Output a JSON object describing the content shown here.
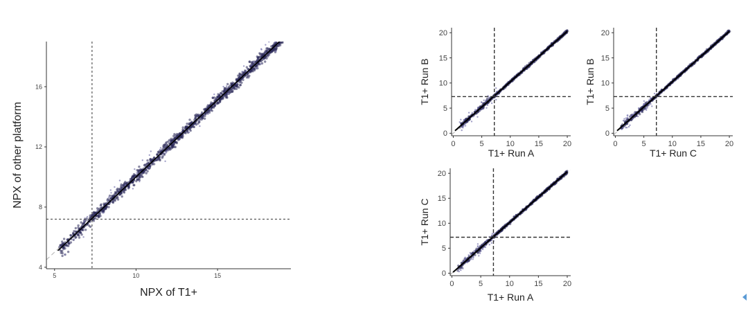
{
  "chart_data": [
    {
      "id": "main",
      "type": "scatter",
      "title": "",
      "xlabel": "NPX of T1+",
      "ylabel": "NPX of other platform",
      "xlim": [
        4.5,
        19.5
      ],
      "ylim": [
        3.9,
        19.0
      ],
      "xticks": [
        5,
        10,
        15
      ],
      "yticks": [
        4,
        8,
        12,
        16
      ],
      "xtick_labels": [
        "5",
        "10",
        "15"
      ],
      "ytick_labels": [
        "4",
        "8",
        "12",
        "16"
      ],
      "vline": 7.3,
      "hline": 7.2,
      "fit_line": [
        [
          5.2,
          5.1
        ],
        [
          19.0,
          19.2
        ]
      ],
      "identity_line": [
        [
          4.5,
          4.5
        ],
        [
          19.5,
          19.5
        ]
      ],
      "point_range": [
        5.3,
        19.0
      ],
      "point_color": "#2c2a5a",
      "grid": false
    },
    {
      "id": "b-vs-a",
      "type": "scatter",
      "title": "",
      "xlabel": "T1+ Run A",
      "ylabel": "T1+ Run B",
      "xlim": [
        -0.3,
        20.6
      ],
      "ylim": [
        -0.5,
        21.0
      ],
      "xticks": [
        0,
        5,
        10,
        15,
        20
      ],
      "yticks": [
        0,
        5,
        10,
        15,
        20
      ],
      "xtick_labels": [
        "0",
        "5",
        "10",
        "15",
        "20"
      ],
      "ytick_labels": [
        "0",
        "5",
        "10",
        "15",
        "20"
      ],
      "vline": 7.2,
      "hline": 7.3,
      "fit_line": [
        [
          0.3,
          0.5
        ],
        [
          20.0,
          20.3
        ]
      ],
      "identity_line": [
        [
          -0.3,
          -0.3
        ],
        [
          20.6,
          20.6
        ]
      ],
      "point_range": [
        1.0,
        20.0
      ],
      "point_color": "#2c2a5a",
      "grid": false
    },
    {
      "id": "b-vs-c",
      "type": "scatter",
      "title": "",
      "xlabel": "T1+ Run C",
      "ylabel": "T1+ Run B",
      "xlim": [
        -0.3,
        20.6
      ],
      "ylim": [
        -0.5,
        21.0
      ],
      "xticks": [
        0,
        5,
        10,
        15,
        20
      ],
      "yticks": [
        0,
        5,
        10,
        15,
        20
      ],
      "xtick_labels": [
        "0",
        "5",
        "10",
        "15",
        "20"
      ],
      "ytick_labels": [
        "0",
        "5",
        "10",
        "15",
        "20"
      ],
      "vline": 7.2,
      "hline": 7.3,
      "fit_line": [
        [
          0.3,
          0.5
        ],
        [
          20.0,
          20.3
        ]
      ],
      "identity_line": [
        [
          -0.3,
          -0.3
        ],
        [
          20.6,
          20.6
        ]
      ],
      "point_range": [
        1.0,
        20.0
      ],
      "point_color": "#2c2a5a",
      "grid": false
    },
    {
      "id": "c-vs-a",
      "type": "scatter",
      "title": "",
      "xlabel": "T1+ Run A",
      "ylabel": "T1+ Run C",
      "xlim": [
        -0.3,
        20.6
      ],
      "ylim": [
        -0.5,
        21.0
      ],
      "xticks": [
        0,
        5,
        10,
        15,
        20
      ],
      "yticks": [
        0,
        5,
        10,
        15,
        20
      ],
      "xtick_labels": [
        "0",
        "5",
        "10",
        "15",
        "20"
      ],
      "ytick_labels": [
        "0",
        "5",
        "10",
        "15",
        "20"
      ],
      "vline": 7.2,
      "hline": 7.2,
      "fit_line": [
        [
          0.2,
          0.2
        ],
        [
          20.0,
          20.3
        ]
      ],
      "identity_line": [
        [
          -0.3,
          -0.3
        ],
        [
          20.6,
          20.6
        ]
      ],
      "point_range": [
        1.0,
        20.0
      ],
      "point_color": "#2c2a5a",
      "grid": false
    }
  ]
}
